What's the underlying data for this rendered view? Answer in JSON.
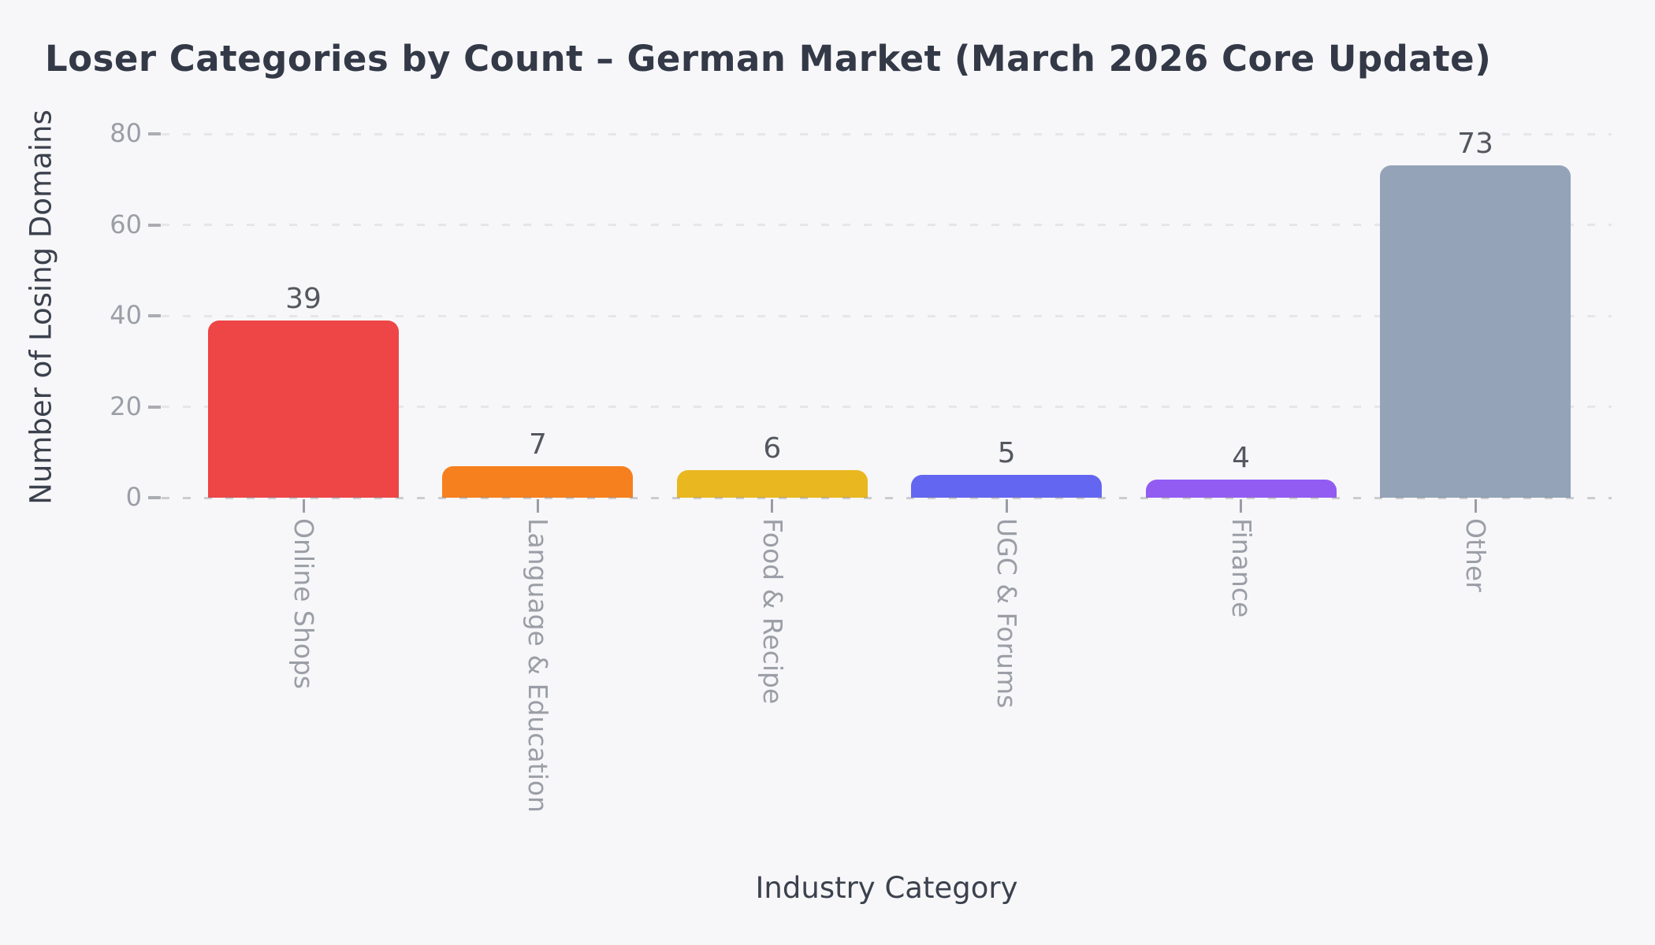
{
  "title": "Loser Categories by Count – German Market (March 2026 Core Update)",
  "chart_data": {
    "type": "bar",
    "title": "Loser Categories by Count – German Market (March 2026 Core Update)",
    "xlabel": "Industry Category",
    "ylabel": "Number of Losing Domains",
    "categories": [
      "Online Shops",
      "Language & Education",
      "Food & Recipe",
      "UGC & Forums",
      "Finance",
      "Other"
    ],
    "values": [
      39,
      7,
      6,
      5,
      4,
      73
    ],
    "value_labels": [
      "39",
      "7",
      "6",
      "5",
      "4",
      "73"
    ],
    "bar_colors": [
      "#ee4546",
      "#f6801e",
      "#e9b71f",
      "#6366f1",
      "#925cf3",
      "#94a3b8"
    ],
    "yticks": [
      0,
      20,
      40,
      60,
      80
    ],
    "ytick_labels": [
      "0",
      "20",
      "40",
      "60",
      "80"
    ],
    "ylim": [
      0,
      80
    ],
    "grid": "horizontal dashed lines, drawn behind bars; dashed baseline drawn over bars",
    "legend": "none",
    "x_tick_label_rotation_deg": 90,
    "style_colors": {
      "background": "#f7f7f9",
      "title_text": "#333947",
      "axis_label_text": "#3b414d",
      "tick_label_text": "#9b9ea6",
      "value_label_text": "#54575f",
      "gridline": "#e6e6e9",
      "tick_mark": "#aaacb2"
    }
  }
}
